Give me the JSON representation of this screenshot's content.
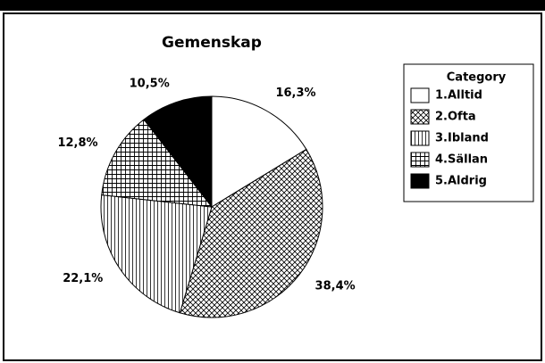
{
  "chart_data": {
    "type": "pie",
    "title": "Gemenskap",
    "legend_title": "Category",
    "categories": [
      "1.Alltid",
      "2.Ofta",
      "3.Ibland",
      "4.Sällan",
      "5.Aldrig"
    ],
    "values": [
      16.3,
      38.4,
      22.1,
      12.8,
      10.5
    ],
    "value_labels": [
      "16,3%",
      "38,4%",
      "22,1%",
      "12,8%",
      "10,5%"
    ],
    "legend": "right"
  }
}
